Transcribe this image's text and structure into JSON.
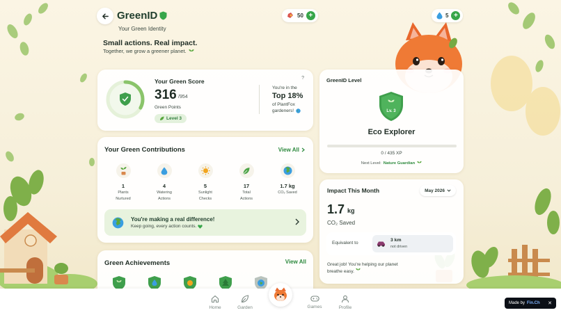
{
  "colors": {
    "accent": "#37a64a",
    "text": "#1f2d25",
    "card": "#ffffff",
    "background": "#fbf5e4"
  },
  "header": {
    "back_icon": "arrow-left-icon",
    "title": "GreenID",
    "subtitle": "Your Green Identity",
    "tagline": "Small actions. Real impact.",
    "tagline_sub": "Together, we grow a greener planet."
  },
  "currencies": [
    {
      "icon": "seed-pack-icon",
      "value": "50"
    },
    {
      "icon": "water-drop-icon",
      "value": "5"
    }
  ],
  "green_score": {
    "label": "Your Green Score",
    "value": "316",
    "max": "/954",
    "points_label": "Green Points",
    "level_chip": "Level 3",
    "help": "?",
    "rank_pre": "You're in the",
    "rank_value": "Top 18%",
    "rank_post1": "of PlantFox",
    "rank_post2": "gardeners!",
    "progress": 0.33
  },
  "contributions": {
    "title": "Your Green Contributions",
    "view_all": "View All",
    "stats": [
      {
        "icon": "plant-icon",
        "value": "1",
        "label1": "Plants",
        "label2": "Nurtured"
      },
      {
        "icon": "water-drop-icon",
        "value": "4",
        "label1": "Watering",
        "label2": "Actions"
      },
      {
        "icon": "sun-icon",
        "value": "5",
        "label1": "Sunlight",
        "label2": "Checks"
      },
      {
        "icon": "leaf-icon",
        "value": "17",
        "label1": "Total",
        "label2": "Actions"
      },
      {
        "icon": "globe-icon",
        "value": "1.7 kg",
        "label1": "CO₂ Saved",
        "label2": ""
      }
    ],
    "banner_title": "You're making a real difference!",
    "banner_sub": "Keep going, every action counts."
  },
  "achievements": {
    "title": "Green Achievements",
    "view_all": "View All"
  },
  "level_card": {
    "title": "GreenID Level",
    "badge": "Lv. 3",
    "name": "Eco Explorer",
    "xp_text": "0 / 435 XP",
    "xp_progress": 0,
    "next_label": "Next Level:",
    "next_name": "Nature Guardian"
  },
  "impact": {
    "title": "Impact This Month",
    "month": "May 2026",
    "value": "1.7",
    "unit": "kg",
    "label": "CO₂ Saved",
    "equiv_label": "Equivalent to",
    "equiv_value": "3 km",
    "equiv_sub": "not driven",
    "message": "Great job! You're helping our planet breathe easy."
  },
  "nav": {
    "home": "Home",
    "garden": "Garden",
    "games": "Games",
    "profile": "Profile"
  },
  "made_by": {
    "prefix": "Made by",
    "brand": "Fin.Ch",
    "close": "✕"
  }
}
